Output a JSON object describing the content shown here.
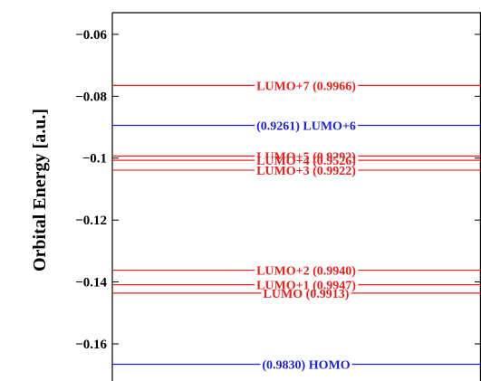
{
  "chart_data": {
    "type": "line",
    "title": "",
    "ylabel": "Orbital Energy [a.u.]",
    "xlabel": "",
    "ylim": [
      -0.172,
      -0.053
    ],
    "yticks": [
      -0.06,
      -0.08,
      -0.1,
      -0.12,
      -0.14,
      -0.16
    ],
    "ytick_labels": [
      "−0.06",
      "−0.08",
      "−0.1",
      "−0.12",
      "−0.14",
      "−0.16"
    ],
    "grid": false,
    "colors": {
      "red": "#e8201e",
      "blue": "#1e1ee0",
      "axis": "#000000"
    },
    "levels": [
      {
        "label": "LUMO+7 (0.9966)",
        "energy": -0.0765,
        "color": "red"
      },
      {
        "label": "(0.9261) LUMO+6",
        "energy": -0.0894,
        "color": "blue"
      },
      {
        "label": "LUMO+5 (0.9292)",
        "energy": -0.0993,
        "color": "red"
      },
      {
        "label": "LUMO+4 (0.9526)",
        "energy": -0.1007,
        "color": "red"
      },
      {
        "label": "LUMO+3 (0.9922)",
        "energy": -0.1039,
        "color": "red"
      },
      {
        "label": "LUMO+2 (0.9940)",
        "energy": -0.1362,
        "color": "red"
      },
      {
        "label": "LUMO+1 (0.9947)",
        "energy": -0.1409,
        "color": "red"
      },
      {
        "label": "LUMO (0.9913)",
        "energy": -0.1436,
        "color": "red"
      },
      {
        "label": "(0.9830) HOMO",
        "energy": -0.1666,
        "color": "blue"
      }
    ]
  }
}
